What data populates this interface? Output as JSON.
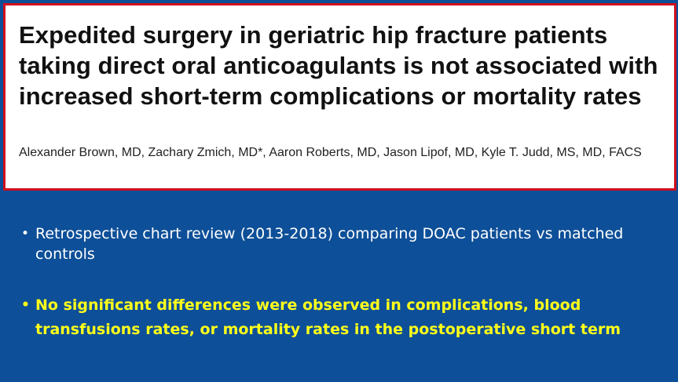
{
  "colors": {
    "background": "#0d4f98",
    "card_border": "#d0101e",
    "highlight_text": "#ffff1a",
    "body_text": "#ffffff"
  },
  "article": {
    "title": "Expedited surgery in geriatric hip fracture patients taking direct oral anticoagulants is not associated with increased short-term complications or mortality rates",
    "authors": "Alexander Brown, MD, Zachary Zmich, MD*, Aaron Roberts, MD, Jason Lipof, MD, Kyle T. Judd, MS, MD, FACS"
  },
  "bullets": [
    {
      "icon": "bullet-dot",
      "text": "Retrospective chart review (2013-2018) comparing DOAC patients vs matched controls"
    },
    {
      "icon": "bullet-dot",
      "text": "No significant differences were observed in complications, blood transfusions rates, or mortality rates in the postoperative short term"
    }
  ]
}
